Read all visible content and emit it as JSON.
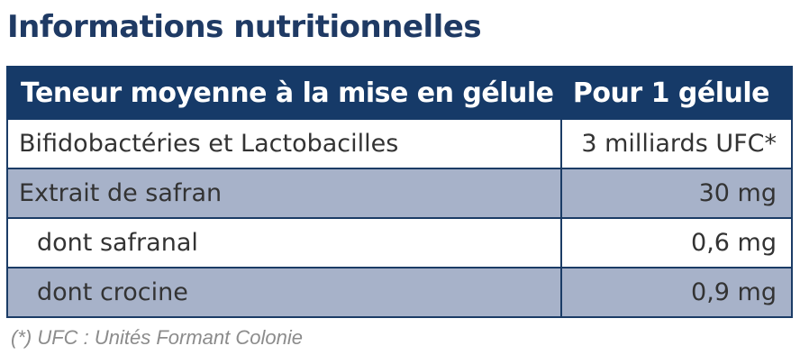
{
  "title": "Informations nutritionnelles",
  "table": {
    "headers": [
      "Teneur moyenne à la mise en gélule",
      "Pour 1 gélule"
    ],
    "rows": [
      {
        "label": "Bifidobactéries et Lactobacilles",
        "value": "3 milliards UFC*"
      },
      {
        "label": "Extrait de safran",
        "value": "30 mg"
      },
      {
        "label": "dont safranal",
        "value": "0,6 mg"
      },
      {
        "label": "dont crocine",
        "value": "0,9 mg"
      }
    ]
  },
  "footnote": "(*) UFC : Unités Formant Colonie",
  "colors": {
    "header_background": "#163a68",
    "title_text": "#1f3a64",
    "alternate_row": "#a7b2c9",
    "border": "#1b3c66"
  }
}
